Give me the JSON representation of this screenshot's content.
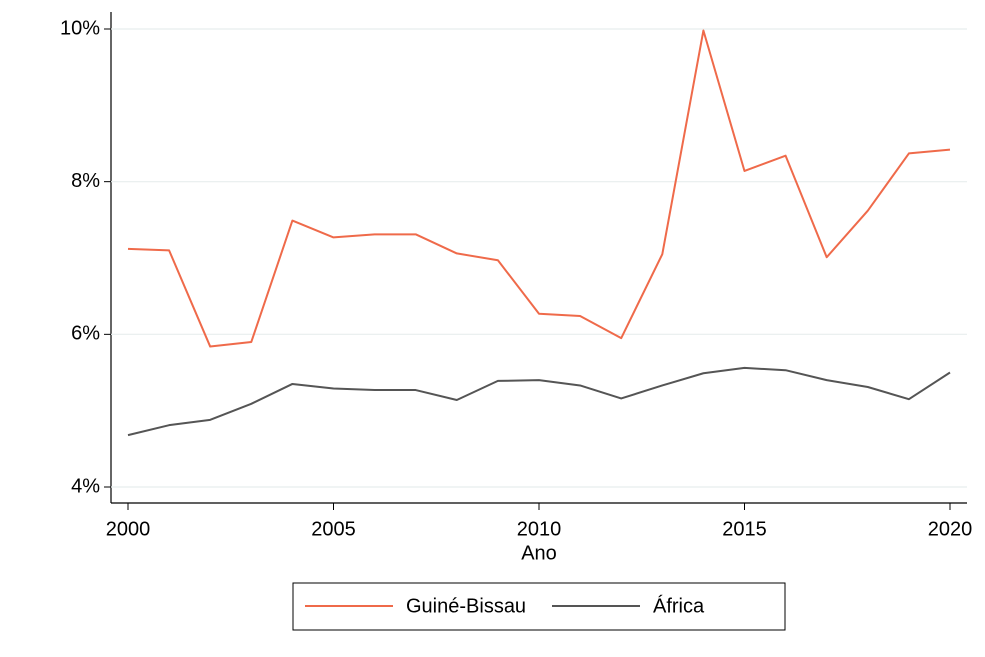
{
  "chart_data": {
    "type": "line",
    "x_label": "Ano",
    "x": [
      2000,
      2001,
      2002,
      2003,
      2004,
      2005,
      2006,
      2007,
      2008,
      2009,
      2010,
      2011,
      2012,
      2013,
      2014,
      2015,
      2016,
      2017,
      2018,
      2019,
      2020
    ],
    "series": [
      {
        "name": "Guiné-Bissau",
        "color": "#ef6a4a",
        "values": [
          7.12,
          7.1,
          5.84,
          5.9,
          7.49,
          7.27,
          7.31,
          7.31,
          7.06,
          6.97,
          6.27,
          6.24,
          5.95,
          7.05,
          9.98,
          8.14,
          8.34,
          7.01,
          7.62,
          8.37,
          8.42
        ]
      },
      {
        "name": "África",
        "color": "#555555",
        "values": [
          4.68,
          4.81,
          4.88,
          5.09,
          5.35,
          5.29,
          5.27,
          5.27,
          5.14,
          5.39,
          5.4,
          5.33,
          5.16,
          5.33,
          5.49,
          5.56,
          5.53,
          5.4,
          5.31,
          5.15,
          5.5
        ]
      }
    ],
    "xlim": [
      2000,
      2020
    ],
    "xticks": [
      2000,
      2005,
      2010,
      2015,
      2020
    ],
    "ylim": [
      4,
      10
    ],
    "yticks": [
      {
        "value": 4,
        "label": "4%"
      },
      {
        "value": 6,
        "label": "6%"
      },
      {
        "value": 8,
        "label": "8%"
      },
      {
        "value": 10,
        "label": "10%"
      }
    ],
    "grid": true,
    "legend": "bottom"
  }
}
